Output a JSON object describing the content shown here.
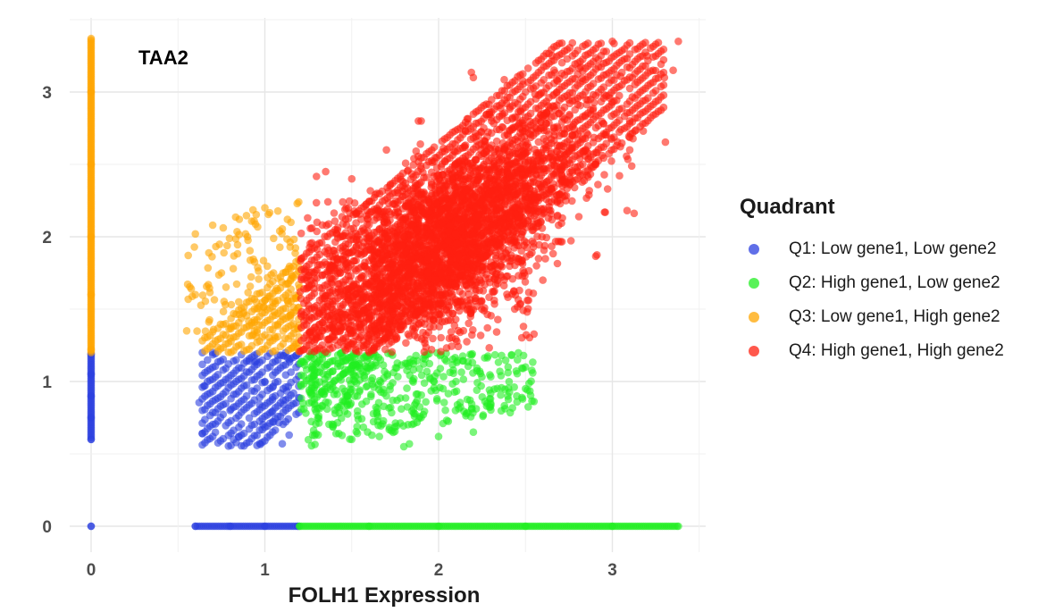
{
  "chart_data": {
    "type": "scatter",
    "title": "TAA2",
    "xlabel": "FOLH1 Expression",
    "ylabel": "",
    "xlim": [
      -0.12,
      3.5
    ],
    "ylim": [
      -0.18,
      3.5
    ],
    "x_ticks": [
      "0",
      "1",
      "2",
      "3"
    ],
    "y_ticks": [
      "0",
      "1",
      "2",
      "3"
    ],
    "grid": true,
    "legend_title": "Quadrant",
    "legend_position": "right",
    "thresholds": {
      "gene1": 1.2,
      "gene2": 1.2
    },
    "series": [
      {
        "name": "Q1: Low gene1, Low gene2",
        "color": "#2b3fe0",
        "points": [
          [
            0,
            0
          ],
          [
            0,
            0.6
          ],
          [
            0,
            0.75
          ],
          [
            0,
            0.9
          ],
          [
            0,
            1.05
          ],
          [
            0,
            1.19
          ],
          [
            0.6,
            0
          ],
          [
            0.8,
            0
          ],
          [
            1.0,
            0
          ],
          [
            1.19,
            0
          ],
          [
            0.64,
            0.64
          ],
          [
            0.8,
            0.8
          ],
          [
            1.0,
            1.0
          ],
          [
            1.18,
            1.18
          ],
          [
            0.65,
            0.97
          ],
          [
            0.7,
            1.2
          ],
          [
            0.85,
            0.62
          ],
          [
            0.97,
            0.84
          ],
          [
            1.1,
            0.57
          ],
          [
            1.14,
            0.63
          ],
          [
            1.05,
            0.72
          ]
        ]
      },
      {
        "name": "Q2: High gene1, Low gene2",
        "color": "#22ee22",
        "points": [
          [
            1.2,
            0
          ],
          [
            1.6,
            0
          ],
          [
            2.0,
            0
          ],
          [
            2.5,
            0
          ],
          [
            3.0,
            0
          ],
          [
            3.38,
            0
          ],
          [
            1.22,
            0.85
          ],
          [
            1.45,
            1.05
          ],
          [
            1.7,
            0.9
          ],
          [
            1.9,
            0.75
          ],
          [
            2.1,
            1.0
          ],
          [
            2.3,
            0.85
          ],
          [
            2.5,
            1.1
          ],
          [
            1.5,
            0.6
          ],
          [
            1.8,
            0.55
          ],
          [
            2.0,
            0.62
          ],
          [
            2.2,
            0.65
          ],
          [
            2.4,
            1.1
          ],
          [
            2.5,
            0.95
          ],
          [
            2.45,
            0.9
          ]
        ]
      },
      {
        "name": "Q3: Low gene1, High gene2",
        "color": "#ffa500",
        "points": [
          [
            0,
            1.22
          ],
          [
            0,
            1.6
          ],
          [
            0,
            2.0
          ],
          [
            0,
            2.5
          ],
          [
            0,
            3.0
          ],
          [
            0,
            3.37
          ],
          [
            0.55,
            1.35
          ],
          [
            0.6,
            1.6
          ],
          [
            0.6,
            2.02
          ],
          [
            0.7,
            2.08
          ],
          [
            0.75,
            1.75
          ],
          [
            0.85,
            1.55
          ],
          [
            0.9,
            2.0
          ],
          [
            1.0,
            2.2
          ],
          [
            1.05,
            1.75
          ],
          [
            1.1,
            1.45
          ],
          [
            1.15,
            2.1
          ],
          [
            0.8,
            1.3
          ]
        ]
      },
      {
        "name": "Q4: High gene1, High gene2",
        "color": "#ff2010",
        "points": [
          [
            1.22,
            1.22
          ],
          [
            1.3,
            2.1
          ],
          [
            1.35,
            2.45
          ],
          [
            1.4,
            1.35
          ],
          [
            1.5,
            2.4
          ],
          [
            1.55,
            1.6
          ],
          [
            1.7,
            2.6
          ],
          [
            1.8,
            2.0
          ],
          [
            1.9,
            2.8
          ],
          [
            2.0,
            1.5
          ],
          [
            2.1,
            2.3
          ],
          [
            2.2,
            3.1
          ],
          [
            2.3,
            1.9
          ],
          [
            2.4,
            2.7
          ],
          [
            2.5,
            3.0
          ],
          [
            2.6,
            1.7
          ],
          [
            2.7,
            2.4
          ],
          [
            2.8,
            3.2
          ],
          [
            2.9,
            2.5
          ],
          [
            3.0,
            3.35
          ],
          [
            3.1,
            2.8
          ],
          [
            3.2,
            3.25
          ],
          [
            3.3,
            3.1
          ],
          [
            3.38,
            3.35
          ],
          [
            3.35,
            3.15
          ],
          [
            3.1,
            2.6
          ]
        ]
      }
    ]
  }
}
